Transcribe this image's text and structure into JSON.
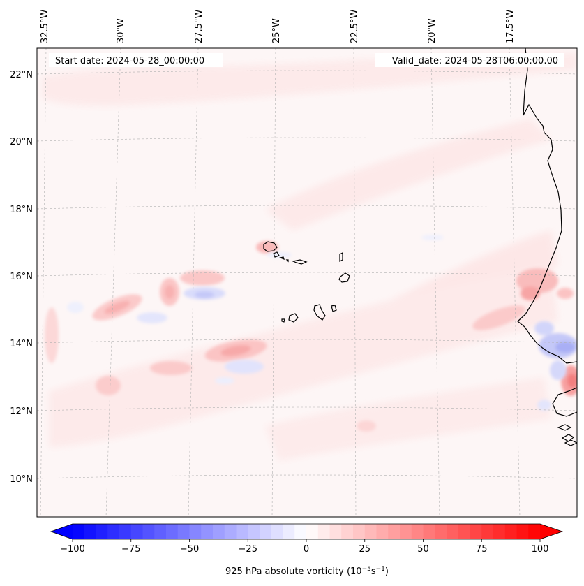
{
  "header": {
    "start_date": "Start date: 2024-05-28_00:00:00",
    "valid_date": "Valid_date: 2024-05-28T06:00:00.00"
  },
  "lon_ticks": [
    "32.5°W",
    "30°W",
    "27.5°W",
    "25°W",
    "22.5°W",
    "20°W",
    "17.5°W"
  ],
  "lat_ticks": [
    "22°N",
    "20°N",
    "18°N",
    "16°N",
    "14°N",
    "12°N",
    "10°N"
  ],
  "colorbar": {
    "ticks": [
      "−100",
      "−75",
      "−50",
      "−25",
      "0",
      "25",
      "50",
      "75",
      "100"
    ],
    "label_prefix": "925 hPa absolute vorticity (10",
    "label_exp1": "−5",
    "label_mid": "s",
    "label_exp2": "−1",
    "label_suffix": ")",
    "vmin": -100,
    "vmax": 100,
    "step": 5,
    "colors": {
      "negative": "#0000ff",
      "zero": "#ffffff",
      "positive": "#ff0000"
    }
  },
  "map": {
    "projection": "lambert-conformal",
    "extent": {
      "lon_min": -32.5,
      "lon_max": -16,
      "lat_min": 9,
      "lat_max": 22.7
    },
    "gridlines": "dashed-gray",
    "coastline_color": "#000000"
  }
}
